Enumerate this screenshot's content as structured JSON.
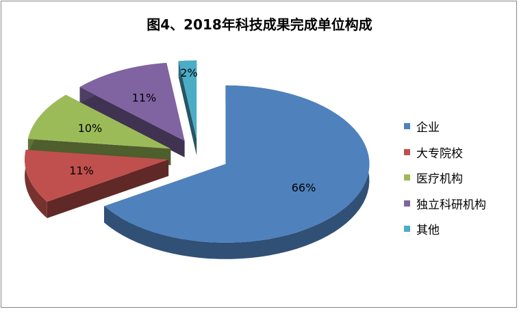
{
  "chart_data": {
    "type": "pie",
    "style": "3d-exploded",
    "title": "图4、2018年科技成果完成单位构成",
    "legend_position": "right",
    "slices": [
      {
        "label": "企业",
        "value": 66,
        "data_label": "66%",
        "color": "#4F81BD"
      },
      {
        "label": "大专院校",
        "value": 11,
        "data_label": "11%",
        "color": "#C0504D"
      },
      {
        "label": "医疗机构",
        "value": 10,
        "data_label": "10%",
        "color": "#9BBB59"
      },
      {
        "label": "独立科研机构",
        "value": 11,
        "data_label": "11%",
        "color": "#8064A2"
      },
      {
        "label": "其他",
        "value": 2,
        "data_label": "2%",
        "color": "#4BACC6"
      }
    ]
  }
}
